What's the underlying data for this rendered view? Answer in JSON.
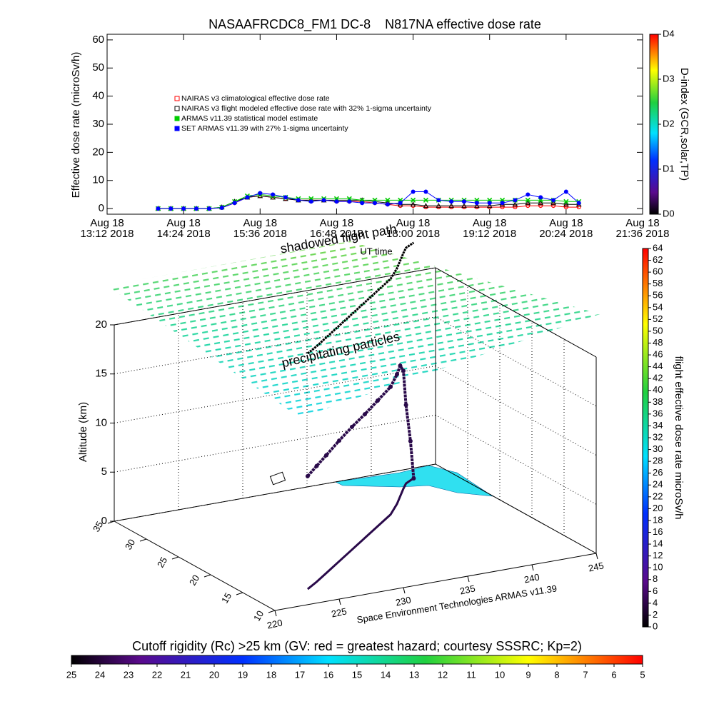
{
  "chart_data": [
    {
      "type": "line",
      "title": "NASAAFRCDC8_FM1 DC-8    N817NA effective dose rate",
      "y_label": "Effective dose rate (microSv/h)",
      "x": [
        "2018-08-18T14:00",
        "2018-08-18T14:12",
        "2018-08-18T14:24",
        "2018-08-18T14:36",
        "2018-08-18T14:48",
        "2018-08-18T15:00",
        "2018-08-18T15:12",
        "2018-08-18T15:24",
        "2018-08-18T15:36",
        "2018-08-18T15:48",
        "2018-08-18T16:00",
        "2018-08-18T16:12",
        "2018-08-18T16:24",
        "2018-08-18T16:36",
        "2018-08-18T16:48",
        "2018-08-18T17:00",
        "2018-08-18T17:12",
        "2018-08-18T17:24",
        "2018-08-18T17:36",
        "2018-08-18T17:48",
        "2018-08-18T18:00",
        "2018-08-18T18:12",
        "2018-08-18T18:24",
        "2018-08-18T18:36",
        "2018-08-18T18:48",
        "2018-08-18T19:00",
        "2018-08-18T19:12",
        "2018-08-18T19:24",
        "2018-08-18T19:36",
        "2018-08-18T19:48",
        "2018-08-18T20:00",
        "2018-08-18T20:12",
        "2018-08-18T20:24",
        "2018-08-18T20:36"
      ],
      "series": [
        {
          "name": "NAIRAS v3 climatological effective dose rate",
          "color": "#ff0000",
          "marker": "circle",
          "values": [
            0,
            0,
            0,
            0,
            0,
            0.3,
            2,
            4,
            4.5,
            4,
            3.5,
            3,
            3,
            3,
            2.5,
            2.5,
            2.5,
            2,
            1.5,
            1,
            1,
            0.5,
            0.5,
            0.5,
            0.5,
            0.5,
            0.5,
            0.5,
            0.5,
            1,
            1,
            1,
            0.5,
            0.5
          ]
        },
        {
          "name": "NAIRAS v3 flight modeled effective dose rate with 32% 1-sigma uncertainty",
          "color": "#000000",
          "marker": "triangle",
          "values": [
            0,
            0,
            0,
            0,
            0,
            0.5,
            2.5,
            4,
            4.5,
            4,
            3.5,
            3,
            3,
            3,
            3,
            3,
            3,
            2.5,
            2,
            1.5,
            1.5,
            1,
            1,
            1,
            1,
            1,
            1,
            1.5,
            1.5,
            2,
            2,
            2,
            1.5,
            1.5
          ]
        },
        {
          "name": "ARMAS v11.39 statistical model estimate",
          "color": "#00cc00",
          "marker": "cross",
          "values": [
            0,
            0,
            0,
            0,
            0,
            0.5,
            2.5,
            4.5,
            5,
            4.5,
            4,
            3.5,
            3.5,
            3.5,
            3.5,
            3.5,
            3,
            3,
            3,
            3,
            3,
            3,
            3,
            3,
            3,
            3,
            3,
            3,
            3,
            3,
            3,
            3,
            2.5,
            2.5
          ]
        },
        {
          "name": "SET ARMAS v11.39 with 27% 1-sigma uncertainty",
          "color": "#0000ff",
          "marker": "dot",
          "values": [
            0,
            0,
            0,
            0,
            0,
            0.3,
            2,
            4,
            5.5,
            5,
            4,
            3,
            2.5,
            3,
            2.5,
            2.5,
            2,
            2,
            1.5,
            2,
            6,
            6,
            3,
            2.5,
            2.5,
            2,
            2,
            2,
            3,
            5,
            4,
            3,
            6,
            2
          ]
        }
      ],
      "xlim": [
        "2018-08-18T13:12",
        "2018-08-18T21:36"
      ],
      "xticks": [
        {
          "value": "2018-08-18T13:12",
          "label": "Aug 18\n13:12 2018"
        },
        {
          "value": "2018-08-18T14:24",
          "label": "Aug 18\n14:24 2018"
        },
        {
          "value": "2018-08-18T15:36",
          "label": "Aug 18\n15:36 2018"
        },
        {
          "value": "2018-08-18T16:48",
          "label": "Aug 18\n16:48 2018"
        },
        {
          "value": "2018-08-18T18:00",
          "label": "Aug 18\n18:00 2018"
        },
        {
          "value": "2018-08-18T19:12",
          "label": "Aug 18\n19:12 2018"
        },
        {
          "value": "2018-08-18T20:24",
          "label": "Aug 18\n20:24 2018"
        },
        {
          "value": "2018-08-18T21:36",
          "label": "Aug 18\n21:36 2018"
        }
      ],
      "ylim": [
        -2,
        62
      ],
      "yticks": [
        0,
        10,
        20,
        30,
        40,
        50,
        60
      ]
    },
    {
      "type": "colorbar",
      "orientation": "vertical",
      "label": "D-index (GCR,solar,TP)",
      "ylim": [
        0,
        4
      ],
      "yticks": [
        {
          "value": 0,
          "label": "D0"
        },
        {
          "value": 1,
          "label": "D1"
        },
        {
          "value": 2,
          "label": "D2"
        },
        {
          "value": 3,
          "label": "D3"
        },
        {
          "value": 4,
          "label": "D4"
        }
      ]
    },
    {
      "type": "scatter3d",
      "z_label": "Altitude (km)",
      "x_label": "Space Environment Technologies ARMAS v11.39",
      "annotations": [
        "shadowed flight path",
        "UT time",
        "precipitating particles"
      ],
      "color": "#2a0a4a",
      "x": [
        224.2,
        225.5,
        227,
        229,
        231,
        233,
        235,
        237,
        238.5,
        239.5,
        240.5,
        241.2,
        241.8,
        242.2
      ],
      "y": [
        13.3,
        14.5,
        16,
        18,
        20,
        22,
        24,
        26,
        28,
        29.5,
        31,
        32,
        32.5,
        32.8
      ],
      "z": [
        11.5,
        11.8,
        12,
        12.3,
        12.5,
        12.6,
        12.8,
        13,
        13.2,
        13.3,
        12,
        8,
        4,
        0
      ],
      "xlim": [
        220,
        245
      ],
      "xticks": [
        220,
        225,
        230,
        235,
        240,
        245
      ],
      "ylim": [
        10,
        35
      ],
      "yticks": [
        10,
        15,
        20,
        25,
        30,
        35
      ],
      "zlim": [
        0,
        20
      ],
      "zticks": [
        0,
        5,
        10,
        15,
        20
      ]
    },
    {
      "type": "colorbar",
      "orientation": "vertical",
      "label": "flight effective dose rate microSv/h",
      "ylim": [
        0,
        64
      ],
      "yticks": [
        0,
        2,
        4,
        6,
        8,
        10,
        12,
        14,
        16,
        18,
        20,
        22,
        24,
        26,
        28,
        30,
        32,
        34,
        36,
        38,
        40,
        42,
        44,
        46,
        48,
        50,
        52,
        54,
        56,
        58,
        60,
        62,
        64
      ]
    },
    {
      "type": "colorbar",
      "orientation": "horizontal",
      "title": "Cutoff rigidity (Rc) >25 km (GV: red = greatest hazard; courtesy SSSRC; Kp=2)",
      "xlim": [
        25,
        5
      ],
      "xticks": [
        25,
        24,
        23,
        22,
        21,
        20,
        19,
        18,
        17,
        16,
        15,
        14,
        13,
        12,
        11,
        10,
        9,
        8,
        7,
        6,
        5
      ]
    }
  ]
}
